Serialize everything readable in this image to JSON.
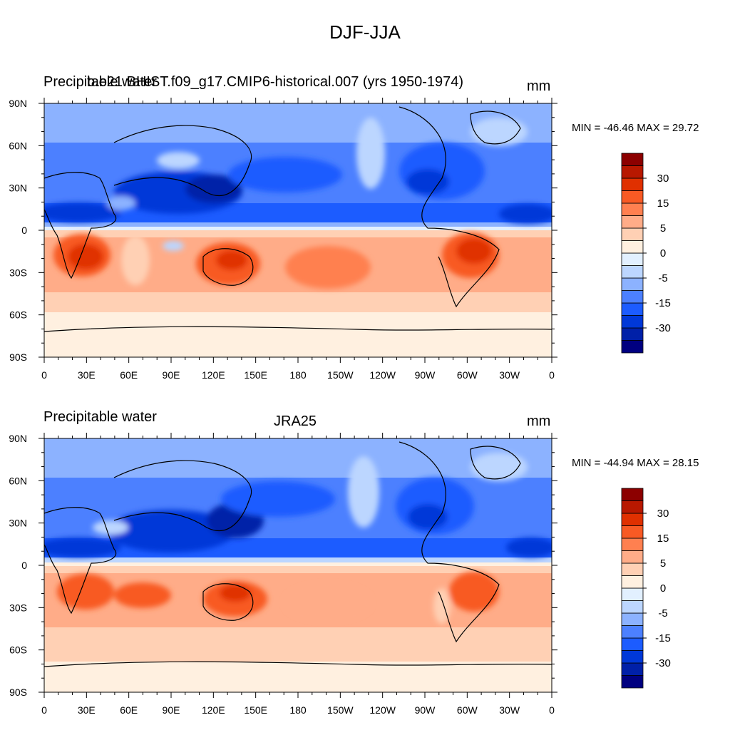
{
  "title": "DJF-JJA",
  "colorbar": {
    "colors": [
      "#000080",
      "#0020a8",
      "#0038d8",
      "#1c5cff",
      "#4c80ff",
      "#8cb2ff",
      "#bcd6ff",
      "#e2f0ff",
      "#fff0e0",
      "#ffd0b4",
      "#ffac88",
      "#ff8050",
      "#f85a24",
      "#e03000",
      "#b81800",
      "#8c0000"
    ],
    "labels": [
      "30",
      "15",
      "5",
      "0",
      "-5",
      "-15",
      "-30"
    ]
  },
  "axes": {
    "lon_labels": [
      "0",
      "30E",
      "60E",
      "90E",
      "120E",
      "150E",
      "180",
      "150W",
      "120W",
      "90W",
      "60W",
      "30W",
      "0"
    ],
    "lat_labels": [
      "90N",
      "60N",
      "30N",
      "0",
      "30S",
      "60S",
      "90S"
    ]
  },
  "panels": [
    {
      "left_title": "Precipitable water",
      "center_title": "b.e21.BHIST.f09_g17.CMIP6-historical.007 (yrs 1950-1974)",
      "units": "mm",
      "stats": "MIN = -46.46 MAX =  29.72"
    },
    {
      "left_title": "Precipitable water",
      "center_title": "JRA25",
      "units": "mm",
      "stats": "MIN = -44.94 MAX =  28.15"
    }
  ]
}
